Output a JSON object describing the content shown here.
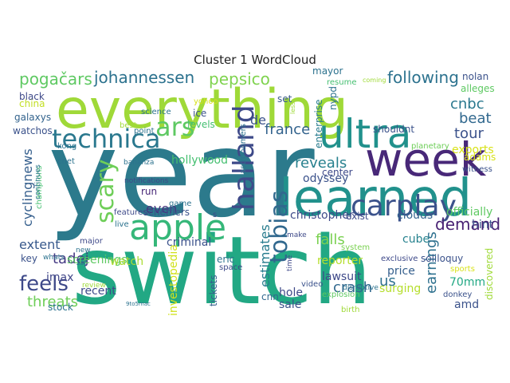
{
  "title": "Cluster 1 WordCloud",
  "words": [
    {
      "text": "year",
      "color": "#2c7a8c"
    },
    {
      "text": "switch",
      "color": "#22a884"
    },
    {
      "text": "everything",
      "color": "#9fd938"
    },
    {
      "text": "week",
      "color": "#482878"
    },
    {
      "text": "learned",
      "color": "#21918c"
    },
    {
      "text": "apple",
      "color": "#35b779"
    },
    {
      "text": "ultra",
      "color": "#21918c"
    },
    {
      "text": "technica",
      "color": "#2a788e"
    },
    {
      "text": "ars",
      "color": "#5ec962"
    },
    {
      "text": "carplay",
      "color": "#3b528b"
    },
    {
      "text": "halland",
      "color": "#3e4a89"
    },
    {
      "text": "tobias",
      "color": "#31688e"
    },
    {
      "text": "scary",
      "color": "#6ece58"
    },
    {
      "text": "feels",
      "color": "#3e4989"
    },
    {
      "text": "pepsico",
      "color": "#7fd34e"
    },
    {
      "text": "johannessen",
      "color": "#2c728e"
    },
    {
      "text": "pogačars",
      "color": "#5ec962"
    },
    {
      "text": "following",
      "color": "#2c728e"
    },
    {
      "text": "cnbc",
      "color": "#2a788e"
    },
    {
      "text": "beat",
      "color": "#31688e"
    },
    {
      "text": "tour",
      "color": "#3b528b"
    },
    {
      "text": "france",
      "color": "#33638d"
    },
    {
      "text": "reveals",
      "color": "#27808e"
    },
    {
      "text": "estimates",
      "color": "#287c8e"
    },
    {
      "text": "demand",
      "color": "#482173"
    },
    {
      "text": "earnings",
      "color": "#2d708e"
    },
    {
      "text": "crash",
      "color": "#31688e"
    },
    {
      "text": "falls",
      "color": "#7ad151"
    },
    {
      "text": "tadej",
      "color": "#443983"
    },
    {
      "text": "threats",
      "color": "#6ece58"
    },
    {
      "text": "extent",
      "color": "#38598c"
    },
    {
      "text": "cyclingnews",
      "color": "#355f8d"
    },
    {
      "text": "de",
      "color": "#3b528b"
    },
    {
      "text": "even",
      "color": "#46327e"
    },
    {
      "text": "us",
      "color": "#2d708e"
    },
    {
      "text": "exports",
      "color": "#d8e219"
    },
    {
      "text": "hollywood",
      "color": "#44bf70"
    },
    {
      "text": "odyssey",
      "color": "#3b528b"
    },
    {
      "text": "christopher",
      "color": "#3e4a89"
    },
    {
      "text": "clouds",
      "color": "#33638d"
    },
    {
      "text": "officially",
      "color": "#5ec962"
    },
    {
      "text": "exist",
      "color": "#3e4989"
    },
    {
      "text": "cube",
      "color": "#26828e"
    },
    {
      "text": "hint",
      "color": "#3b528b"
    },
    {
      "text": "screenings",
      "color": "#5ec962"
    },
    {
      "text": "imax",
      "color": "#404688"
    },
    {
      "text": "key",
      "color": "#3b528b"
    },
    {
      "text": "watch",
      "color": "#aadc32"
    },
    {
      "text": "investopedia",
      "color": "#d0e11c"
    },
    {
      "text": "criminal",
      "color": "#3b528b"
    },
    {
      "text": "eric",
      "color": "#2c728e"
    },
    {
      "text": "reporter",
      "color": "#b5de2b"
    },
    {
      "text": "lawsuit",
      "color": "#3e4989"
    },
    {
      "text": "price",
      "color": "#355f8d"
    },
    {
      "text": "surging",
      "color": "#b5de2b"
    },
    {
      "text": "70mm",
      "color": "#22a884"
    },
    {
      "text": "amd",
      "color": "#3b528b"
    },
    {
      "text": "recent",
      "color": "#3e4989"
    },
    {
      "text": "stock",
      "color": "#2c728e"
    },
    {
      "text": "tickets",
      "color": "#355f8d"
    },
    {
      "text": "hole",
      "color": "#3e4989"
    },
    {
      "text": "sale",
      "color": "#3b528b"
    },
    {
      "text": "cnn",
      "color": "#31688e"
    },
    {
      "text": "explosion",
      "color": "#5ec962"
    },
    {
      "text": "birth",
      "color": "#a0da39"
    },
    {
      "text": "mayor",
      "color": "#2c728e"
    },
    {
      "text": "resume",
      "color": "#44bf70"
    },
    {
      "text": "coming",
      "color": "#a0da39"
    },
    {
      "text": "nolan",
      "color": "#3b528b"
    },
    {
      "text": "alleges",
      "color": "#5ec962"
    },
    {
      "text": "set",
      "color": "#38598c"
    },
    {
      "text": "enterprise",
      "color": "#287c8e"
    },
    {
      "text": "nypd",
      "color": "#2c728e"
    },
    {
      "text": "shouldnt",
      "color": "#3b528b"
    },
    {
      "text": "center",
      "color": "#3e4989"
    },
    {
      "text": "planetary",
      "color": "#6ece58"
    },
    {
      "text": "adams",
      "color": "#d8e219"
    },
    {
      "text": "witness",
      "color": "#3b528b"
    },
    {
      "text": "black",
      "color": "#3e4989"
    },
    {
      "text": "china",
      "color": "#c2df23"
    },
    {
      "text": "galaxys",
      "color": "#33638d"
    },
    {
      "text": "watchos",
      "color": "#3b528b"
    },
    {
      "text": "kong",
      "color": "#2c728e"
    },
    {
      "text": "cnet",
      "color": "#2c728e"
    },
    {
      "text": "yohoo",
      "color": "#d8e219"
    },
    {
      "text": "science",
      "color": "#2c728e"
    },
    {
      "text": "ice",
      "color": "#3b528b"
    },
    {
      "text": "levels",
      "color": "#44bf70"
    },
    {
      "text": "best",
      "color": "#a0da39"
    },
    {
      "text": "point",
      "color": "#2c728e"
    },
    {
      "text": "bananza",
      "color": "#2c728e"
    },
    {
      "text": "astronomers",
      "color": "#2c728e"
    },
    {
      "text": "less",
      "color": "#a0da39"
    },
    {
      "text": "notifications",
      "color": "#3e4989"
    },
    {
      "text": "run",
      "color": "#482878"
    },
    {
      "text": "game",
      "color": "#2c728e"
    },
    {
      "text": "features",
      "color": "#3e4989"
    },
    {
      "text": "schefflers",
      "color": "#3b528b"
    },
    {
      "text": "live",
      "color": "#2c728e"
    },
    {
      "text": "s",
      "color": "#3e4989"
    },
    {
      "text": "champions",
      "color": "#44bf70"
    },
    {
      "text": "continues",
      "color": "#2c728e"
    },
    {
      "text": "major",
      "color": "#3e4989"
    },
    {
      "text": "whats",
      "color": "#2c728e"
    },
    {
      "text": "new",
      "color": "#2c728e"
    },
    {
      "text": "1st",
      "color": "#2c728e"
    },
    {
      "text": "review",
      "color": "#a0da39"
    },
    {
      "text": "9to5mac",
      "color": "#2c728e"
    },
    {
      "text": "space",
      "color": "#3e4989"
    },
    {
      "text": "video",
      "color": "#3b528b"
    },
    {
      "text": "make",
      "color": "#3e4989"
    },
    {
      "text": "time",
      "color": "#3e4989"
    },
    {
      "text": "system",
      "color": "#7ad151"
    },
    {
      "text": "disruptive",
      "color": "#2c728e"
    },
    {
      "text": "soliloquy",
      "color": "#3b528b"
    },
    {
      "text": "exclusive",
      "color": "#3e4989"
    },
    {
      "text": "donkey",
      "color": "#3b528b"
    },
    {
      "text": "sports",
      "color": "#d8e219"
    },
    {
      "text": "discovered",
      "color": "#a0da39"
    }
  ]
}
